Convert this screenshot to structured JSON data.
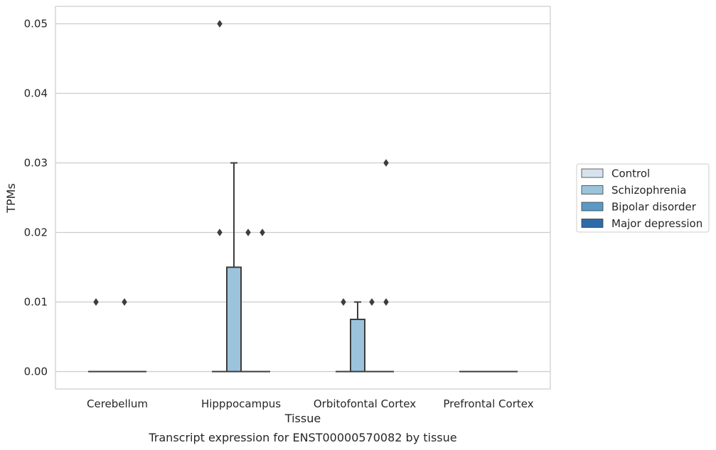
{
  "chart_data": {
    "type": "box",
    "title": "",
    "caption": "Transcript expression for ENST00000570082 by tissue",
    "xlabel": "Tissue",
    "ylabel": "TPMs",
    "ylim": [
      -0.0025,
      0.0525
    ],
    "yticks": [
      0.0,
      0.01,
      0.02,
      0.03,
      0.04,
      0.05
    ],
    "ytick_labels": [
      "0.00",
      "0.01",
      "0.02",
      "0.03",
      "0.04",
      "0.05"
    ],
    "categories": [
      "Cerebellum",
      "Hipppocampus",
      "Orbitofontal Cortex",
      "Prefrontal Cortex"
    ],
    "grid": "horizontal",
    "legend_position": "right",
    "series": [
      {
        "name": "Control",
        "color": "#d6e3ef",
        "boxes": [
          {
            "q1": 0,
            "median": 0,
            "q3": 0,
            "whisker_low": 0,
            "whisker_high": 0,
            "outliers": [
              0.01
            ]
          },
          {
            "q1": 0,
            "median": 0,
            "q3": 0,
            "whisker_low": 0,
            "whisker_high": 0,
            "outliers": [
              0.05,
              0.02
            ]
          },
          {
            "q1": 0,
            "median": 0,
            "q3": 0,
            "whisker_low": 0,
            "whisker_high": 0,
            "outliers": [
              0.01
            ]
          },
          {
            "q1": 0,
            "median": 0,
            "q3": 0,
            "whisker_low": 0,
            "whisker_high": 0,
            "outliers": []
          }
        ]
      },
      {
        "name": "Schizophrenia",
        "color": "#9bc4dc",
        "boxes": [
          {
            "q1": 0,
            "median": 0,
            "q3": 0,
            "whisker_low": 0,
            "whisker_high": 0,
            "outliers": []
          },
          {
            "q1": 0,
            "median": 0,
            "q3": 0.015,
            "whisker_low": 0,
            "whisker_high": 0.03,
            "outliers": []
          },
          {
            "q1": 0,
            "median": 0,
            "q3": 0.0075,
            "whisker_low": 0,
            "whisker_high": 0.01,
            "outliers": []
          },
          {
            "q1": 0,
            "median": 0,
            "q3": 0,
            "whisker_low": 0,
            "whisker_high": 0,
            "outliers": []
          }
        ]
      },
      {
        "name": "Bipolar disorder",
        "color": "#5a9ac6",
        "boxes": [
          {
            "q1": 0,
            "median": 0,
            "q3": 0,
            "whisker_low": 0,
            "whisker_high": 0,
            "outliers": [
              0.01
            ]
          },
          {
            "q1": 0,
            "median": 0,
            "q3": 0,
            "whisker_low": 0,
            "whisker_high": 0,
            "outliers": [
              0.02
            ]
          },
          {
            "q1": 0,
            "median": 0,
            "q3": 0,
            "whisker_low": 0,
            "whisker_high": 0,
            "outliers": [
              0.01
            ]
          },
          {
            "q1": 0,
            "median": 0,
            "q3": 0,
            "whisker_low": 0,
            "whisker_high": 0,
            "outliers": []
          }
        ]
      },
      {
        "name": "Major depression",
        "color": "#2d6ba8",
        "boxes": [
          {
            "q1": 0,
            "median": 0,
            "q3": 0,
            "whisker_low": 0,
            "whisker_high": 0,
            "outliers": []
          },
          {
            "q1": 0,
            "median": 0,
            "q3": 0,
            "whisker_low": 0,
            "whisker_high": 0,
            "outliers": [
              0.02
            ]
          },
          {
            "q1": 0,
            "median": 0,
            "q3": 0,
            "whisker_low": 0,
            "whisker_high": 0,
            "outliers": [
              0.03,
              0.01
            ]
          },
          {
            "q1": 0,
            "median": 0,
            "q3": 0,
            "whisker_low": 0,
            "whisker_high": 0,
            "outliers": []
          }
        ]
      }
    ]
  }
}
